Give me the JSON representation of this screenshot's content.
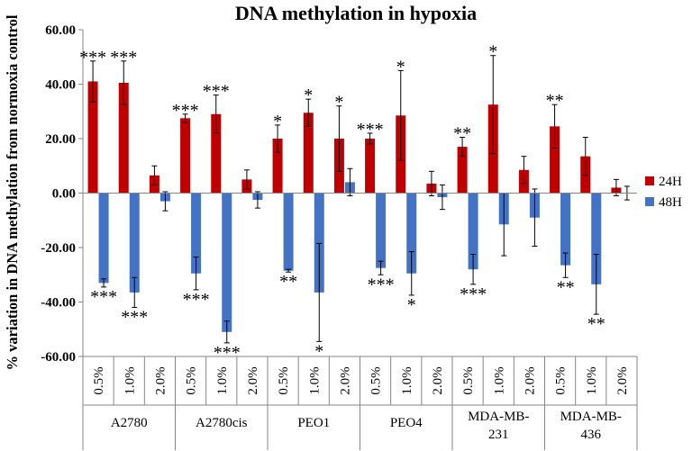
{
  "chart_data": {
    "type": "bar",
    "title": "DNA methylation in hypoxia",
    "ylabel": "% variation in DNA methylation from normoxia control",
    "xlabel": "",
    "ylim": [
      -60,
      60
    ],
    "yticks": [
      "60.00",
      "40.00",
      "20.00",
      "0.00",
      "-20.00",
      "-40.00",
      "-60.00"
    ],
    "grid": false,
    "legend_position": "right",
    "groups": [
      {
        "name": "A2780",
        "categories": [
          "0.5%",
          "1.0%",
          "2.0%"
        ]
      },
      {
        "name": "A2780cis",
        "categories": [
          "0.5%",
          "1.0%",
          "2.0%"
        ]
      },
      {
        "name": "PEO1",
        "categories": [
          "0.5%",
          "1.0%",
          "2.0%"
        ]
      },
      {
        "name": "PEO4",
        "categories": [
          "0.5%",
          "1.0%",
          "2.0%"
        ]
      },
      {
        "name": "MDA-MB-231",
        "label_lines": [
          "MDA-MB-",
          "231"
        ],
        "categories": [
          "0.5%",
          "1.0%",
          "2.0%"
        ]
      },
      {
        "name": "MDA-MB-436",
        "label_lines": [
          "MDA-MB-",
          "436"
        ],
        "categories": [
          "0.5%",
          "1.0%",
          "2.0%"
        ]
      }
    ],
    "series": [
      {
        "name": "24H",
        "color": "#c00000",
        "values": [
          41,
          40.5,
          6.5,
          27.5,
          29,
          5,
          20,
          29.5,
          20,
          20,
          28.5,
          3.5,
          17,
          32.5,
          8.5,
          24.5,
          13.5,
          2
        ],
        "errors": [
          7.5,
          8,
          3.5,
          1.5,
          7,
          3.5,
          5,
          5,
          12,
          2,
          16.5,
          4.5,
          3.5,
          18,
          5,
          8,
          7,
          3
        ],
        "significance": [
          "***",
          "***",
          "",
          "***",
          "***",
          "",
          "*",
          "*",
          "*",
          "***",
          "*",
          "",
          "**",
          "*",
          "",
          "**",
          "",
          ""
        ]
      },
      {
        "name": "48H",
        "color": "#4472c4",
        "values": [
          -33,
          -36.5,
          -3,
          -29.5,
          -51,
          -2.5,
          -28.5,
          -36.5,
          4,
          -27.5,
          -29.5,
          -1.5,
          -28,
          -11.5,
          -9,
          -26.5,
          -33.5,
          0
        ],
        "errors": [
          1.5,
          5.5,
          3.5,
          6,
          4,
          3,
          0.5,
          18,
          5,
          2.5,
          8,
          4.5,
          5.5,
          11.5,
          10.5,
          4.5,
          11,
          2.5
        ],
        "significance": [
          "***",
          "***",
          "",
          "***",
          "***",
          "",
          "**",
          "*",
          "",
          "***",
          "*",
          "",
          "***",
          "",
          "",
          "**",
          "**",
          ""
        ]
      }
    ]
  }
}
